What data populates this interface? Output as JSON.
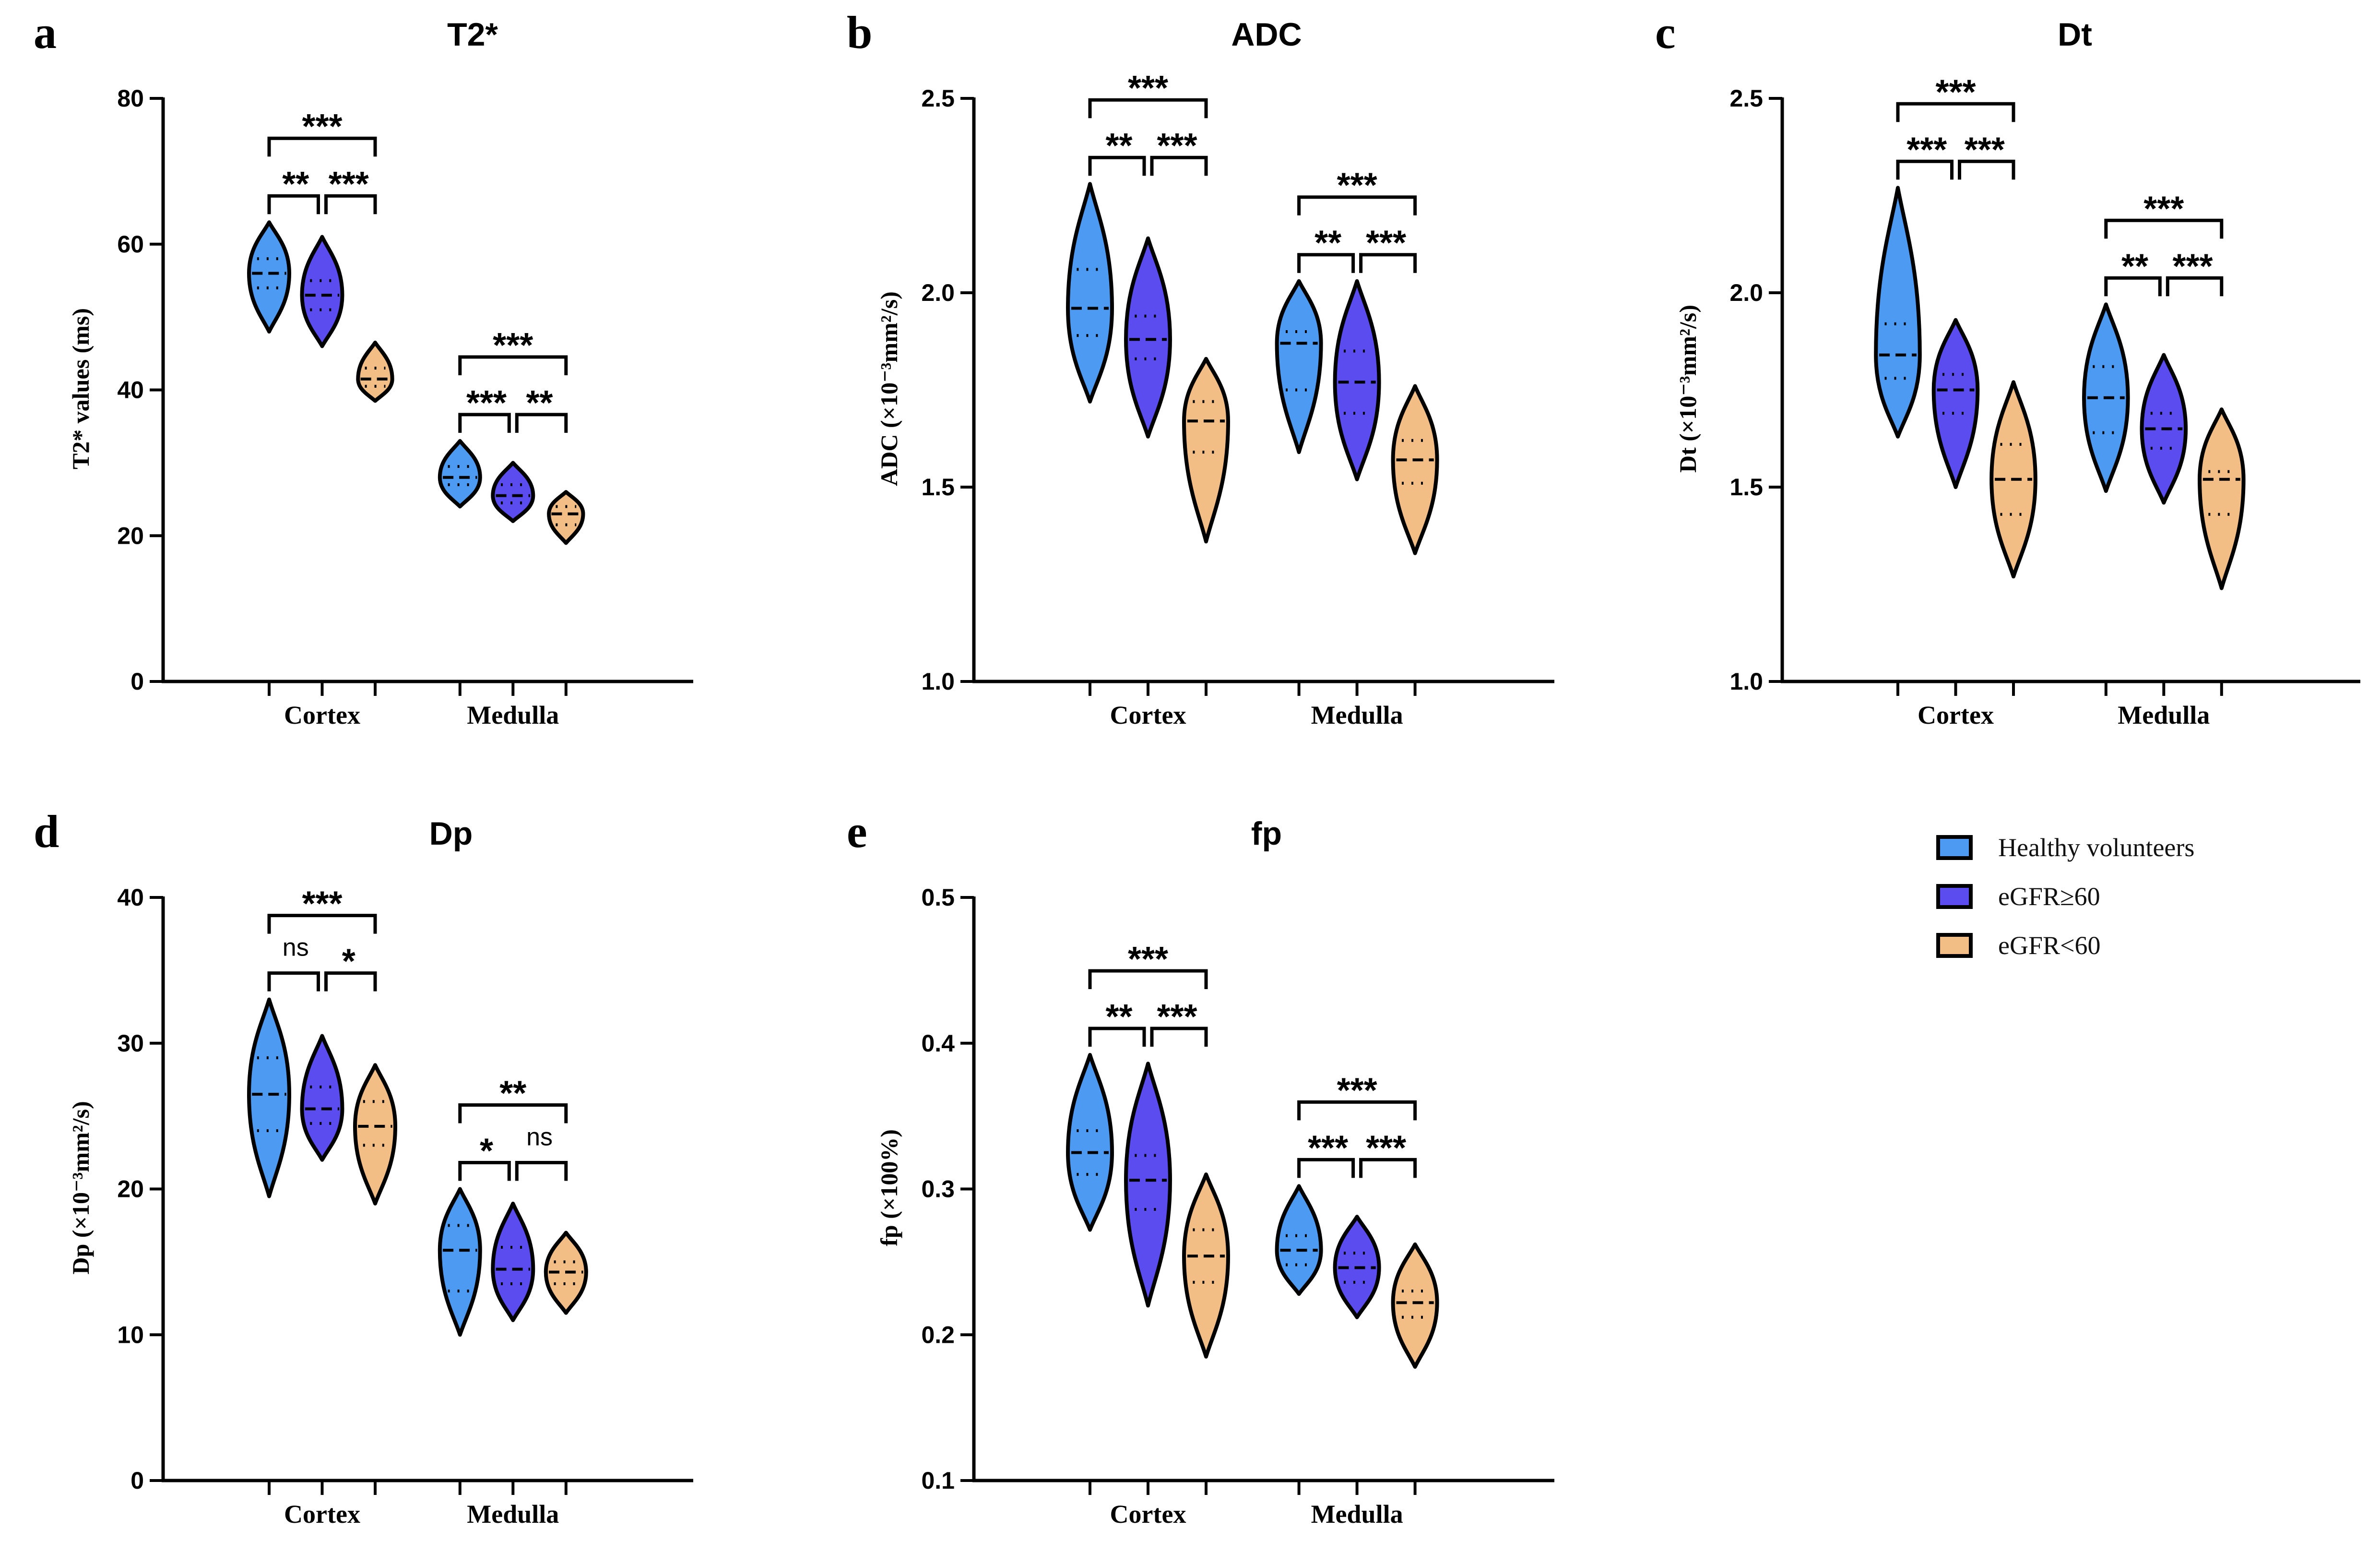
{
  "colors": {
    "healthy": "#4D9AF2",
    "egfr_high": "#5B4CF0",
    "egfr_low": "#F3BE86",
    "stroke": "#000000"
  },
  "legend": {
    "items": [
      {
        "label": "Healthy volunteers",
        "color_key": "healthy"
      },
      {
        "label": "eGFR≥60",
        "color_key": "egfr_high"
      },
      {
        "label": "eGFR<60",
        "color_key": "egfr_low"
      }
    ]
  },
  "chart_data": [
    {
      "panel": "a",
      "title": "T2*",
      "type": "violin",
      "ylabel": "T2* values (ms)",
      "ylim": [
        0,
        80
      ],
      "yticks": [
        0,
        20,
        40,
        60,
        80
      ],
      "groups": [
        "Cortex",
        "Medulla"
      ],
      "series": [
        "Healthy volunteers",
        "eGFR≥60",
        "eGFR<60"
      ],
      "values": {
        "Cortex": [
          {
            "min": 48,
            "max": 63,
            "median": 56,
            "q1": 54,
            "q3": 58
          },
          {
            "min": 46,
            "max": 61,
            "median": 53,
            "q1": 51,
            "q3": 55
          },
          {
            "min": 38.5,
            "max": 46.5,
            "median": 41.5,
            "q1": 40.5,
            "q3": 43
          }
        ],
        "Medulla": [
          {
            "min": 24,
            "max": 33,
            "median": 28,
            "q1": 27,
            "q3": 29.5
          },
          {
            "min": 22,
            "max": 30,
            "median": 25.5,
            "q1": 24.5,
            "q3": 27
          },
          {
            "min": 19,
            "max": 26,
            "median": 23,
            "q1": 21.5,
            "q3": 24
          }
        ]
      },
      "significance": {
        "Cortex": {
          "left": "**",
          "right": "***",
          "top": "***"
        },
        "Medulla": {
          "left": "***",
          "right": "**",
          "top": "***"
        }
      }
    },
    {
      "panel": "b",
      "title": "ADC",
      "type": "violin",
      "ylabel": "ADC (×10⁻³mm²/s)",
      "ylim": [
        1.0,
        2.5
      ],
      "yticks": [
        "1.0",
        "1.5",
        "2.0",
        "2.5"
      ],
      "groups": [
        "Cortex",
        "Medulla"
      ],
      "series": [
        "Healthy volunteers",
        "eGFR≥60",
        "eGFR<60"
      ],
      "values": {
        "Cortex": [
          {
            "min": 1.72,
            "max": 2.28,
            "median": 1.96,
            "q1": 1.89,
            "q3": 2.06
          },
          {
            "min": 1.63,
            "max": 2.14,
            "median": 1.88,
            "q1": 1.83,
            "q3": 1.94
          },
          {
            "min": 1.36,
            "max": 1.83,
            "median": 1.67,
            "q1": 1.59,
            "q3": 1.72
          }
        ],
        "Medulla": [
          {
            "min": 1.59,
            "max": 2.03,
            "median": 1.87,
            "q1": 1.75,
            "q3": 1.9
          },
          {
            "min": 1.52,
            "max": 2.03,
            "median": 1.77,
            "q1": 1.69,
            "q3": 1.85
          },
          {
            "min": 1.33,
            "max": 1.76,
            "median": 1.57,
            "q1": 1.51,
            "q3": 1.62
          }
        ]
      },
      "significance": {
        "Cortex": {
          "left": "**",
          "right": "***",
          "top": "***"
        },
        "Medulla": {
          "left": "**",
          "right": "***",
          "top": "***"
        }
      }
    },
    {
      "panel": "c",
      "title": "Dt",
      "type": "violin",
      "ylabel": "Dt (×10⁻³mm²/s)",
      "ylim": [
        1.0,
        2.5
      ],
      "yticks": [
        "1.0",
        "1.5",
        "2.0",
        "2.5"
      ],
      "groups": [
        "Cortex",
        "Medulla"
      ],
      "series": [
        "Healthy volunteers",
        "eGFR≥60",
        "eGFR<60"
      ],
      "values": {
        "Cortex": [
          {
            "min": 1.63,
            "max": 2.27,
            "median": 1.84,
            "q1": 1.78,
            "q3": 1.92
          },
          {
            "min": 1.5,
            "max": 1.93,
            "median": 1.75,
            "q1": 1.69,
            "q3": 1.79
          },
          {
            "min": 1.27,
            "max": 1.77,
            "median": 1.52,
            "q1": 1.43,
            "q3": 1.61
          }
        ],
        "Medulla": [
          {
            "min": 1.49,
            "max": 1.97,
            "median": 1.73,
            "q1": 1.64,
            "q3": 1.81
          },
          {
            "min": 1.46,
            "max": 1.84,
            "median": 1.65,
            "q1": 1.6,
            "q3": 1.69
          },
          {
            "min": 1.24,
            "max": 1.7,
            "median": 1.52,
            "q1": 1.43,
            "q3": 1.54
          }
        ]
      },
      "significance": {
        "Cortex": {
          "left": "***",
          "right": "***",
          "top": "***"
        },
        "Medulla": {
          "left": "**",
          "right": "***",
          "top": "***"
        }
      }
    },
    {
      "panel": "d",
      "title": "Dp",
      "type": "violin",
      "ylabel": "Dp (×10⁻³mm²/s)",
      "ylim": [
        0,
        40
      ],
      "yticks": [
        0,
        10,
        20,
        30,
        40
      ],
      "groups": [
        "Cortex",
        "Medulla"
      ],
      "series": [
        "Healthy volunteers",
        "eGFR≥60",
        "eGFR<60"
      ],
      "values": {
        "Cortex": [
          {
            "min": 19.5,
            "max": 33,
            "median": 26.5,
            "q1": 24,
            "q3": 29
          },
          {
            "min": 22,
            "max": 30.5,
            "median": 25.5,
            "q1": 24.5,
            "q3": 27
          },
          {
            "min": 19,
            "max": 28.5,
            "median": 24.3,
            "q1": 23,
            "q3": 26
          }
        ],
        "Medulla": [
          {
            "min": 10,
            "max": 20,
            "median": 15.8,
            "q1": 13,
            "q3": 17.5
          },
          {
            "min": 11,
            "max": 19,
            "median": 14.5,
            "q1": 13.5,
            "q3": 16
          },
          {
            "min": 11.5,
            "max": 17,
            "median": 14.3,
            "q1": 13.5,
            "q3": 15
          }
        ]
      },
      "significance": {
        "Cortex": {
          "left": "ns",
          "right": "*",
          "top": "***"
        },
        "Medulla": {
          "left": "*",
          "right": "ns",
          "top": "**"
        }
      }
    },
    {
      "panel": "e",
      "title": "fp",
      "type": "violin",
      "ylabel": "fp (×100%)",
      "ylim": [
        0.1,
        0.5
      ],
      "yticks": [
        "0.1",
        "0.2",
        "0.3",
        "0.4",
        "0.5"
      ],
      "groups": [
        "Cortex",
        "Medulla"
      ],
      "series": [
        "Healthy volunteers",
        "eGFR≥60",
        "eGFR<60"
      ],
      "values": {
        "Cortex": [
          {
            "min": 0.272,
            "max": 0.392,
            "median": 0.325,
            "q1": 0.31,
            "q3": 0.34
          },
          {
            "min": 0.22,
            "max": 0.386,
            "median": 0.306,
            "q1": 0.286,
            "q3": 0.323
          },
          {
            "min": 0.185,
            "max": 0.31,
            "median": 0.254,
            "q1": 0.236,
            "q3": 0.272
          }
        ],
        "Medulla": [
          {
            "min": 0.228,
            "max": 0.302,
            "median": 0.258,
            "q1": 0.248,
            "q3": 0.268
          },
          {
            "min": 0.212,
            "max": 0.281,
            "median": 0.246,
            "q1": 0.236,
            "q3": 0.256
          },
          {
            "min": 0.178,
            "max": 0.262,
            "median": 0.222,
            "q1": 0.212,
            "q3": 0.23
          }
        ]
      },
      "significance": {
        "Cortex": {
          "left": "**",
          "right": "***",
          "top": "***"
        },
        "Medulla": {
          "left": "***",
          "right": "***",
          "top": "***"
        }
      }
    }
  ]
}
